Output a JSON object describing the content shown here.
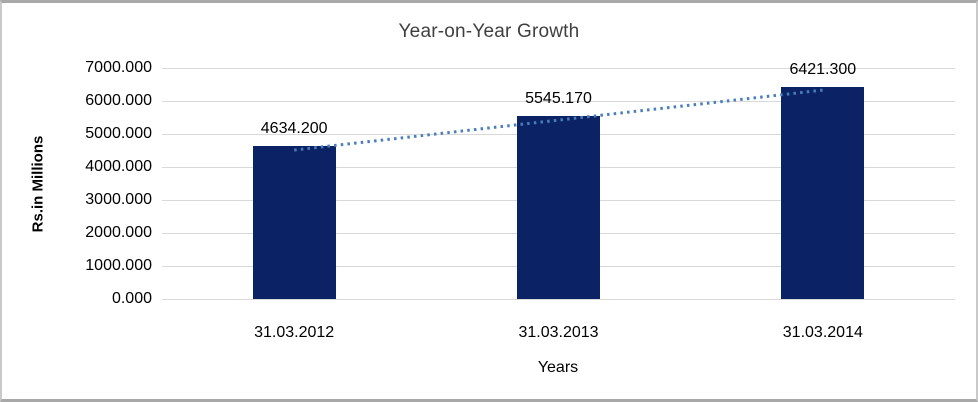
{
  "chart_data": {
    "type": "bar",
    "title": "Year-on-Year Growth",
    "xlabel": "Years",
    "ylabel": "Rs.in Millions",
    "categories": [
      "31.03.2012",
      "31.03.2013",
      "31.03.2014"
    ],
    "values": [
      4634.2,
      5545.17,
      6421.3
    ],
    "value_labels": [
      "4634.200",
      "5545.170",
      "6421.300"
    ],
    "ytick_labels": [
      "7000.000",
      "6000.000",
      "5000.000",
      "4000.000",
      "3000.000",
      "2000.000",
      "1000.000",
      "0.000"
    ],
    "ylim": [
      0,
      7000
    ],
    "ytick_step": 1000,
    "grid": true,
    "legend": "none",
    "bar_color": "#0b2264",
    "trendline": {
      "type": "linear",
      "style": "dotted",
      "color": "#4a7ebb"
    },
    "gridline_color": "#d9d9d9",
    "title_color": "#3f3f3f",
    "text_color": "#000000"
  }
}
